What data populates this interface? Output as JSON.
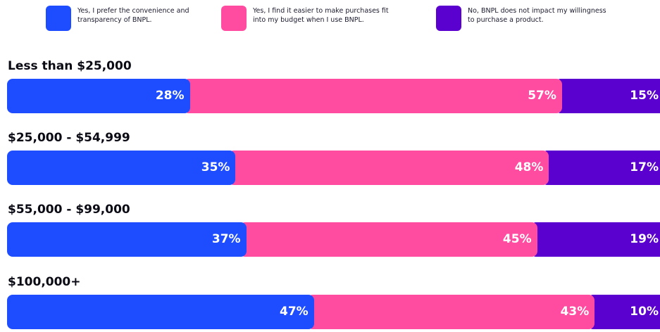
{
  "legend": [
    {
      "label": "Yes, I prefer the convenience and transparency of BNPL.",
      "color": "#1d4dff"
    },
    {
      "label": "Yes, I find it easier to make purchases fit into my budget when I use BNPL.",
      "color": "#ff4ca0"
    },
    {
      "label": "No, BNPL does not impact my willingness to purchase a product.",
      "color": "#5a00cf"
    }
  ],
  "chart_data": {
    "type": "bar",
    "orientation": "horizontal",
    "stacked": true,
    "value_format": "percent",
    "categories": [
      "Less than $25,000",
      "$25,000 - $54,999",
      "$55,000 - $99,000",
      "$100,000+"
    ],
    "series": [
      {
        "name": "Yes, I prefer the convenience and transparency of BNPL.",
        "color": "#1d4dff",
        "values": [
          28,
          35,
          37,
          47
        ]
      },
      {
        "name": "Yes, I find it easier to make purchases fit into my budget when I use BNPL.",
        "color": "#ff4ca0",
        "values": [
          57,
          48,
          45,
          43
        ]
      },
      {
        "name": "No, BNPL does not impact my willingness to purchase a product.",
        "color": "#5a00cf",
        "values": [
          15,
          17,
          19,
          10
        ]
      }
    ],
    "legend_position": "top",
    "grid": false
  }
}
